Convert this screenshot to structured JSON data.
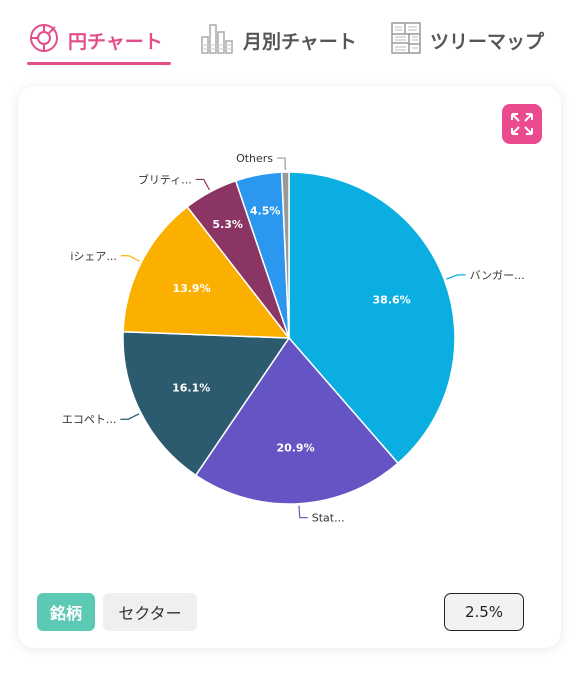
{
  "tabs": [
    {
      "label": "円チャート",
      "icon": "pie-chart-icon",
      "active": true
    },
    {
      "label": "月別チャート",
      "icon": "bar-chart-icon",
      "active": false
    },
    {
      "label": "ツリーマップ",
      "icon": "treemap-icon",
      "active": false
    }
  ],
  "toggle": {
    "stock_label": "銘柄",
    "sector_label": "セクター"
  },
  "threshold_label": "2.5%",
  "colors": {
    "accent": "#e44d8a",
    "toggle_active": "#5cc9b4"
  },
  "chart_data": {
    "type": "pie",
    "slices": [
      {
        "label": "バンガー...",
        "value": 38.6,
        "display": "38.6%",
        "color": "#0aaee0"
      },
      {
        "label": "Stat...",
        "value": 20.9,
        "display": "20.9%",
        "color": "#6454c4"
      },
      {
        "label": "エコペト...",
        "value": 16.1,
        "display": "16.1%",
        "color": "#2c5a6e"
      },
      {
        "label": "iシェア...",
        "value": 13.9,
        "display": "13.9%",
        "color": "#fbb000"
      },
      {
        "label": "ブリティ...",
        "value": 5.3,
        "display": "5.3%",
        "color": "#8b3564"
      },
      {
        "label": "",
        "value": 4.5,
        "display": "4.5%",
        "color": "#2b97ef"
      },
      {
        "label": "Others",
        "value": 0.7,
        "display": "",
        "color": "#9a9a9a"
      }
    ]
  }
}
